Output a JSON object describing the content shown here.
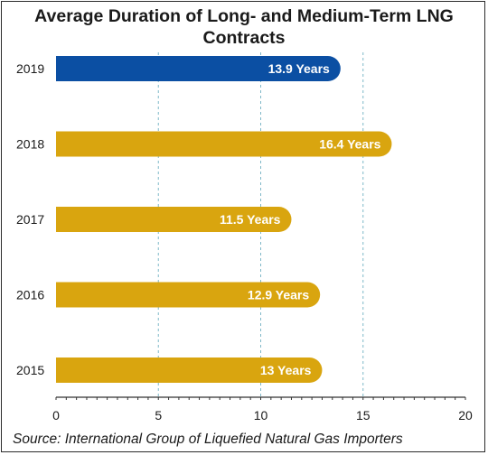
{
  "chart_data": {
    "type": "bar",
    "orientation": "horizontal",
    "title": "Average Duration of Long- and Medium-Term LNG Contracts",
    "categories": [
      "2019",
      "2018",
      "2017",
      "2016",
      "2015"
    ],
    "values": [
      13.9,
      16.4,
      11.5,
      12.9,
      13
    ],
    "data_labels": [
      "13.9 Years",
      "16.4 Years",
      "11.5 Years",
      "12.9 Years",
      "13 Years"
    ],
    "bar_colors": [
      "#0b4fa3",
      "#d9a50f",
      "#d9a50f",
      "#d9a50f",
      "#d9a50f"
    ],
    "xlim": [
      0,
      20
    ],
    "xticks": [
      "0",
      "5",
      "10",
      "15",
      "20"
    ],
    "xlabel": "",
    "ylabel": "",
    "grid": "vertical dashed",
    "source": "Source: International Group of Liquefied Natural Gas Importers"
  }
}
